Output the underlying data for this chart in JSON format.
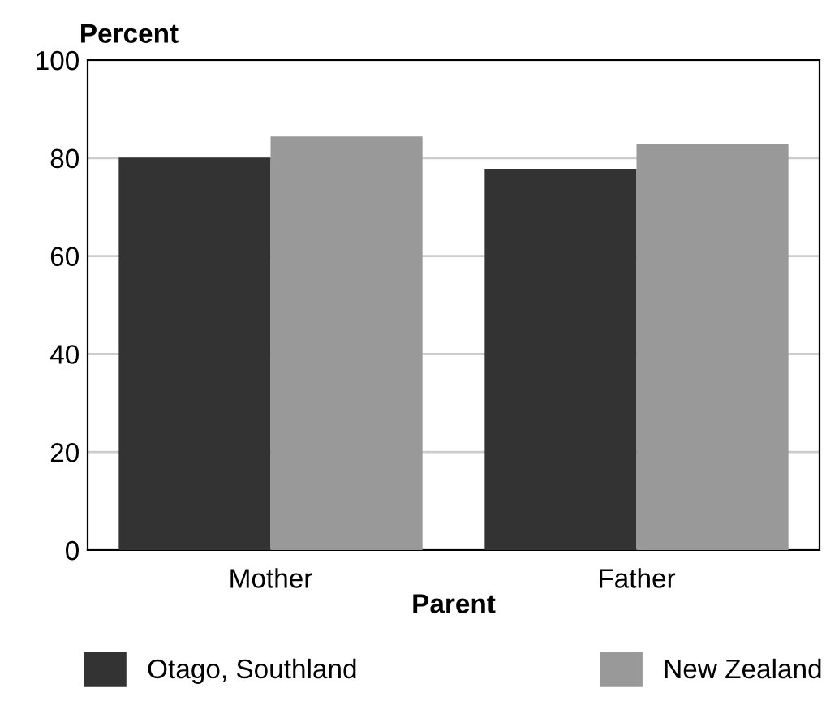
{
  "chart_data": {
    "type": "bar",
    "ylabel": "Percent",
    "xlabel": "Parent",
    "categories": [
      "Mother",
      "Father"
    ],
    "series": [
      {
        "name": "Otago, Southland",
        "color": "#333333",
        "values": [
          80.1,
          77.8
        ]
      },
      {
        "name": "New Zealand",
        "color": "#999999",
        "values": [
          84.4,
          82.9
        ]
      }
    ],
    "ylim": [
      0,
      100
    ],
    "yticks": [
      0,
      20,
      40,
      60,
      80,
      100
    ],
    "grid": "y",
    "legend": "bottom"
  }
}
